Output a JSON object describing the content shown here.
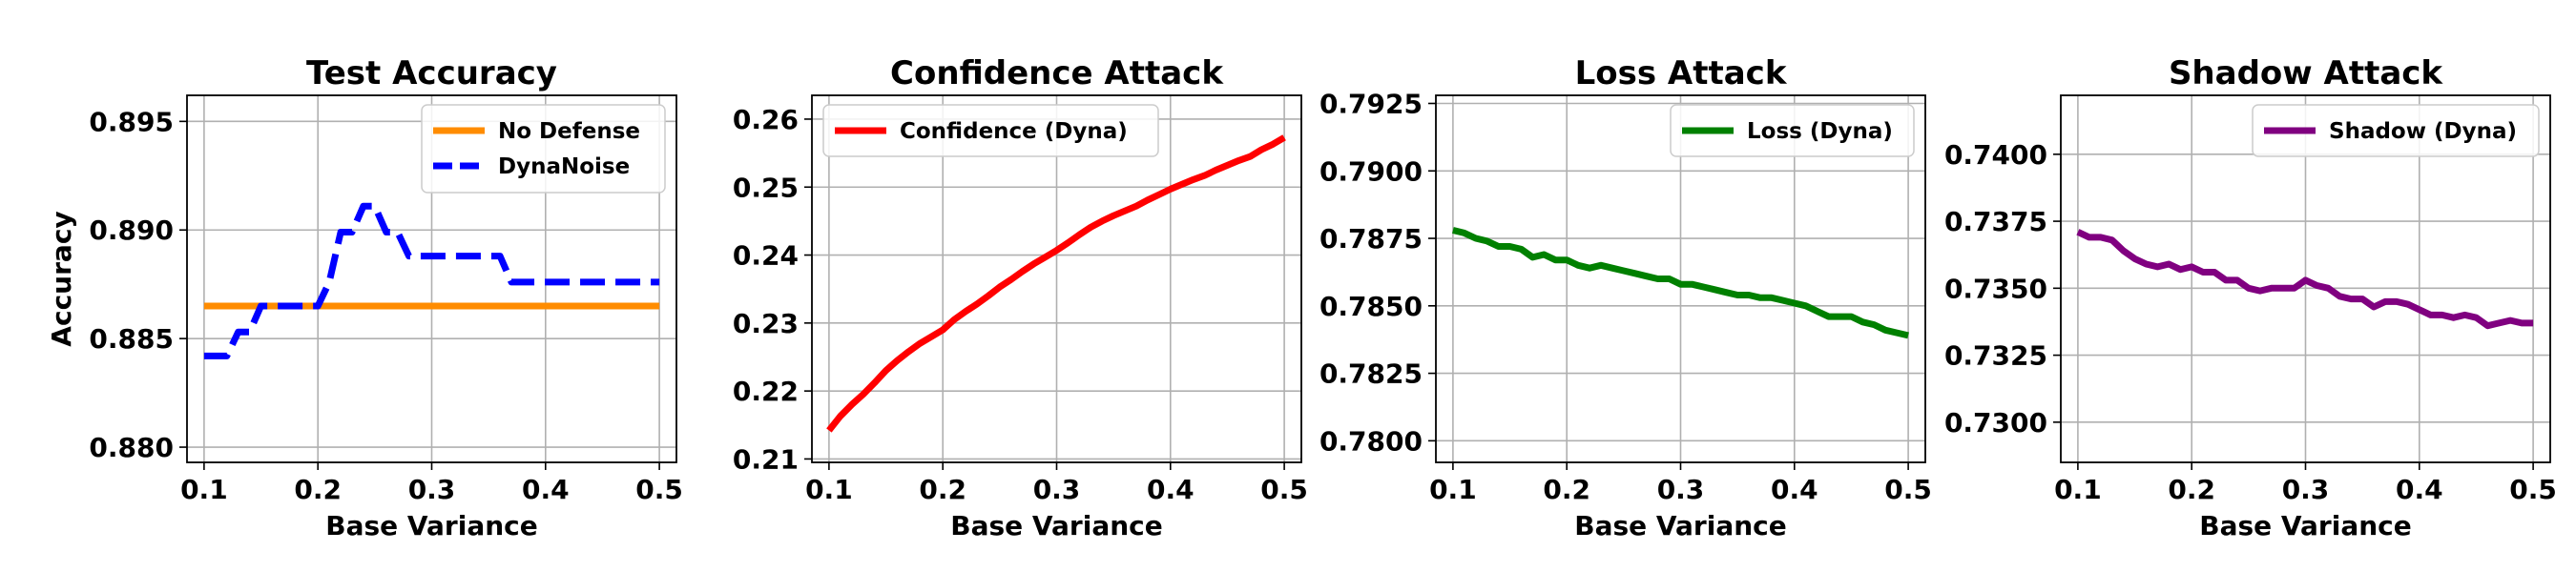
{
  "chart_data": [
    {
      "type": "line",
      "title": "Test Accuracy",
      "xlabel": "Base Variance",
      "ylabel": "Accuracy",
      "xlim": [
        0.085,
        0.515
      ],
      "ylim": [
        0.8793,
        0.8962
      ],
      "xticks": [
        0.1,
        0.2,
        0.3,
        0.4,
        0.5
      ],
      "xtick_labels": [
        "0.1",
        "0.2",
        "0.3",
        "0.4",
        "0.5"
      ],
      "yticks": [
        0.88,
        0.885,
        0.89,
        0.895
      ],
      "ytick_labels": [
        "0.880",
        "0.885",
        "0.890",
        "0.895"
      ],
      "grid": true,
      "legend_position": "top-right",
      "series": [
        {
          "name": "No Defense",
          "color": "#ff8c00",
          "style": "solid",
          "x": [
            0.1,
            0.5
          ],
          "y": [
            0.8865,
            0.8865
          ]
        },
        {
          "name": "DynaNoise",
          "color": "#0000ff",
          "style": "dashed",
          "x": [
            0.1,
            0.12,
            0.13,
            0.14,
            0.15,
            0.16,
            0.17,
            0.18,
            0.19,
            0.2,
            0.21,
            0.22,
            0.23,
            0.24,
            0.25,
            0.26,
            0.27,
            0.28,
            0.29,
            0.3,
            0.31,
            0.32,
            0.33,
            0.34,
            0.35,
            0.36,
            0.37,
            0.38,
            0.39,
            0.4,
            0.41,
            0.42,
            0.43,
            0.44,
            0.45,
            0.46,
            0.47,
            0.48,
            0.49,
            0.5
          ],
          "y": [
            0.8842,
            0.8842,
            0.8853,
            0.8853,
            0.8865,
            0.8865,
            0.8865,
            0.8865,
            0.8865,
            0.8865,
            0.8876,
            0.8899,
            0.8899,
            0.8911,
            0.8911,
            0.8899,
            0.8899,
            0.8888,
            0.8888,
            0.8888,
            0.8888,
            0.8888,
            0.8888,
            0.8888,
            0.8888,
            0.8888,
            0.8876,
            0.8876,
            0.8876,
            0.8876,
            0.8876,
            0.8876,
            0.8876,
            0.8876,
            0.8876,
            0.8876,
            0.8876,
            0.8876,
            0.8876,
            0.8876
          ]
        }
      ]
    },
    {
      "type": "line",
      "title": "Confidence Attack",
      "xlabel": "Base Variance",
      "ylabel": "",
      "xlim": [
        0.085,
        0.515
      ],
      "ylim": [
        0.2095,
        0.2635
      ],
      "xticks": [
        0.1,
        0.2,
        0.3,
        0.4,
        0.5
      ],
      "xtick_labels": [
        "0.1",
        "0.2",
        "0.3",
        "0.4",
        "0.5"
      ],
      "yticks": [
        0.21,
        0.22,
        0.23,
        0.24,
        0.25,
        0.26
      ],
      "ytick_labels": [
        "0.21",
        "0.22",
        "0.23",
        "0.24",
        "0.25",
        "0.26"
      ],
      "grid": true,
      "legend_position": "top-left",
      "series": [
        {
          "name": "Confidence (Dyna)",
          "color": "#ff0000",
          "style": "solid",
          "x": [
            0.1,
            0.11,
            0.12,
            0.13,
            0.14,
            0.15,
            0.16,
            0.17,
            0.18,
            0.19,
            0.2,
            0.21,
            0.22,
            0.23,
            0.24,
            0.25,
            0.26,
            0.27,
            0.28,
            0.29,
            0.3,
            0.31,
            0.32,
            0.33,
            0.34,
            0.35,
            0.36,
            0.37,
            0.38,
            0.39,
            0.4,
            0.41,
            0.42,
            0.43,
            0.44,
            0.45,
            0.46,
            0.47,
            0.48,
            0.49,
            0.5
          ],
          "y": [
            0.2142,
            0.2163,
            0.218,
            0.2195,
            0.2212,
            0.223,
            0.2245,
            0.2258,
            0.227,
            0.228,
            0.229,
            0.2305,
            0.2317,
            0.2328,
            0.234,
            0.2353,
            0.2364,
            0.2376,
            0.2387,
            0.2397,
            0.2407,
            0.2418,
            0.243,
            0.2441,
            0.245,
            0.2458,
            0.2465,
            0.2472,
            0.2481,
            0.2489,
            0.2497,
            0.2504,
            0.2511,
            0.2517,
            0.2525,
            0.2532,
            0.2539,
            0.2545,
            0.2555,
            0.2563,
            0.2573
          ]
        }
      ]
    },
    {
      "type": "line",
      "title": "Loss Attack",
      "xlabel": "Base Variance",
      "ylabel": "",
      "xlim": [
        0.085,
        0.515
      ],
      "ylim": [
        0.7792,
        0.7928
      ],
      "xticks": [
        0.1,
        0.2,
        0.3,
        0.4,
        0.5
      ],
      "xtick_labels": [
        "0.1",
        "0.2",
        "0.3",
        "0.4",
        "0.5"
      ],
      "yticks": [
        0.78,
        0.7825,
        0.785,
        0.7875,
        0.79,
        0.7925
      ],
      "ytick_labels": [
        "0.7800",
        "0.7825",
        "0.7850",
        "0.7875",
        "0.7900",
        "0.7925"
      ],
      "grid": true,
      "legend_position": "top-right",
      "series": [
        {
          "name": "Loss (Dyna)",
          "color": "#008000",
          "style": "solid",
          "x": [
            0.1,
            0.11,
            0.12,
            0.13,
            0.14,
            0.15,
            0.16,
            0.17,
            0.18,
            0.19,
            0.2,
            0.21,
            0.22,
            0.23,
            0.24,
            0.25,
            0.26,
            0.27,
            0.28,
            0.29,
            0.3,
            0.31,
            0.32,
            0.33,
            0.34,
            0.35,
            0.36,
            0.37,
            0.38,
            0.39,
            0.4,
            0.41,
            0.42,
            0.43,
            0.44,
            0.45,
            0.46,
            0.47,
            0.48,
            0.49,
            0.5
          ],
          "y": [
            0.7878,
            0.7877,
            0.7875,
            0.7874,
            0.7872,
            0.7872,
            0.7871,
            0.7868,
            0.7869,
            0.7867,
            0.7867,
            0.7865,
            0.7864,
            0.7865,
            0.7864,
            0.7863,
            0.7862,
            0.7861,
            0.786,
            0.786,
            0.7858,
            0.7858,
            0.7857,
            0.7856,
            0.7855,
            0.7854,
            0.7854,
            0.7853,
            0.7853,
            0.7852,
            0.7851,
            0.785,
            0.7848,
            0.7846,
            0.7846,
            0.7846,
            0.7844,
            0.7843,
            0.7841,
            0.784,
            0.7839
          ]
        }
      ]
    },
    {
      "type": "line",
      "title": "Shadow Attack",
      "xlabel": "Base Variance",
      "ylabel": "",
      "xlim": [
        0.085,
        0.515
      ],
      "ylim": [
        0.7285,
        0.7422
      ],
      "xticks": [
        0.1,
        0.2,
        0.3,
        0.4,
        0.5
      ],
      "xtick_labels": [
        "0.1",
        "0.2",
        "0.3",
        "0.4",
        "0.5"
      ],
      "yticks": [
        0.73,
        0.7325,
        0.735,
        0.7375,
        0.74
      ],
      "ytick_labels": [
        "0.7300",
        "0.7325",
        "0.7350",
        "0.7375",
        "0.7400"
      ],
      "grid": true,
      "legend_position": "top-right",
      "series": [
        {
          "name": "Shadow (Dyna)",
          "color": "#800080",
          "style": "solid",
          "x": [
            0.1,
            0.11,
            0.12,
            0.13,
            0.14,
            0.15,
            0.16,
            0.17,
            0.18,
            0.19,
            0.2,
            0.21,
            0.22,
            0.23,
            0.24,
            0.25,
            0.26,
            0.27,
            0.28,
            0.29,
            0.3,
            0.31,
            0.32,
            0.33,
            0.34,
            0.35,
            0.36,
            0.37,
            0.38,
            0.39,
            0.4,
            0.41,
            0.42,
            0.43,
            0.44,
            0.45,
            0.46,
            0.47,
            0.48,
            0.49,
            0.5
          ],
          "y": [
            0.7371,
            0.7369,
            0.7369,
            0.7368,
            0.7364,
            0.7361,
            0.7359,
            0.7358,
            0.7359,
            0.7357,
            0.7358,
            0.7356,
            0.7356,
            0.7353,
            0.7353,
            0.735,
            0.7349,
            0.735,
            0.735,
            0.735,
            0.7353,
            0.7351,
            0.735,
            0.7347,
            0.7346,
            0.7346,
            0.7343,
            0.7345,
            0.7345,
            0.7344,
            0.7342,
            0.734,
            0.734,
            0.7339,
            0.734,
            0.7339,
            0.7336,
            0.7337,
            0.7338,
            0.7337,
            0.7337
          ]
        }
      ]
    }
  ]
}
